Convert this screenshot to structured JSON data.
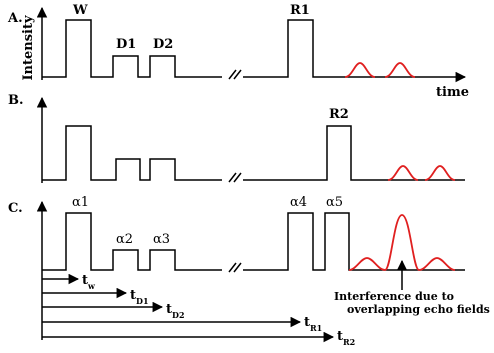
{
  "panels": {
    "a": {
      "label": "A.",
      "ylabel": "Intensity",
      "xlabel": "time",
      "pulses": [
        "W",
        "D1",
        "D2",
        "R1"
      ]
    },
    "b": {
      "label": "B.",
      "pulses": [
        "R2"
      ]
    },
    "c": {
      "label": "C.",
      "pulses": [
        "α1",
        "α2",
        "α3",
        "α4",
        "α5"
      ]
    }
  },
  "time_axes": [
    {
      "main": "t",
      "sub": "w"
    },
    {
      "main": "t",
      "sub": "D1"
    },
    {
      "main": "t",
      "sub": "D2"
    },
    {
      "main": "t",
      "sub": "R1"
    },
    {
      "main": "t",
      "sub": "R2"
    }
  ],
  "annotation": {
    "line1": "Interference due to",
    "line2": "overlapping echo fields"
  },
  "colors": {
    "echo": "#e02020",
    "lines": "#000000"
  }
}
